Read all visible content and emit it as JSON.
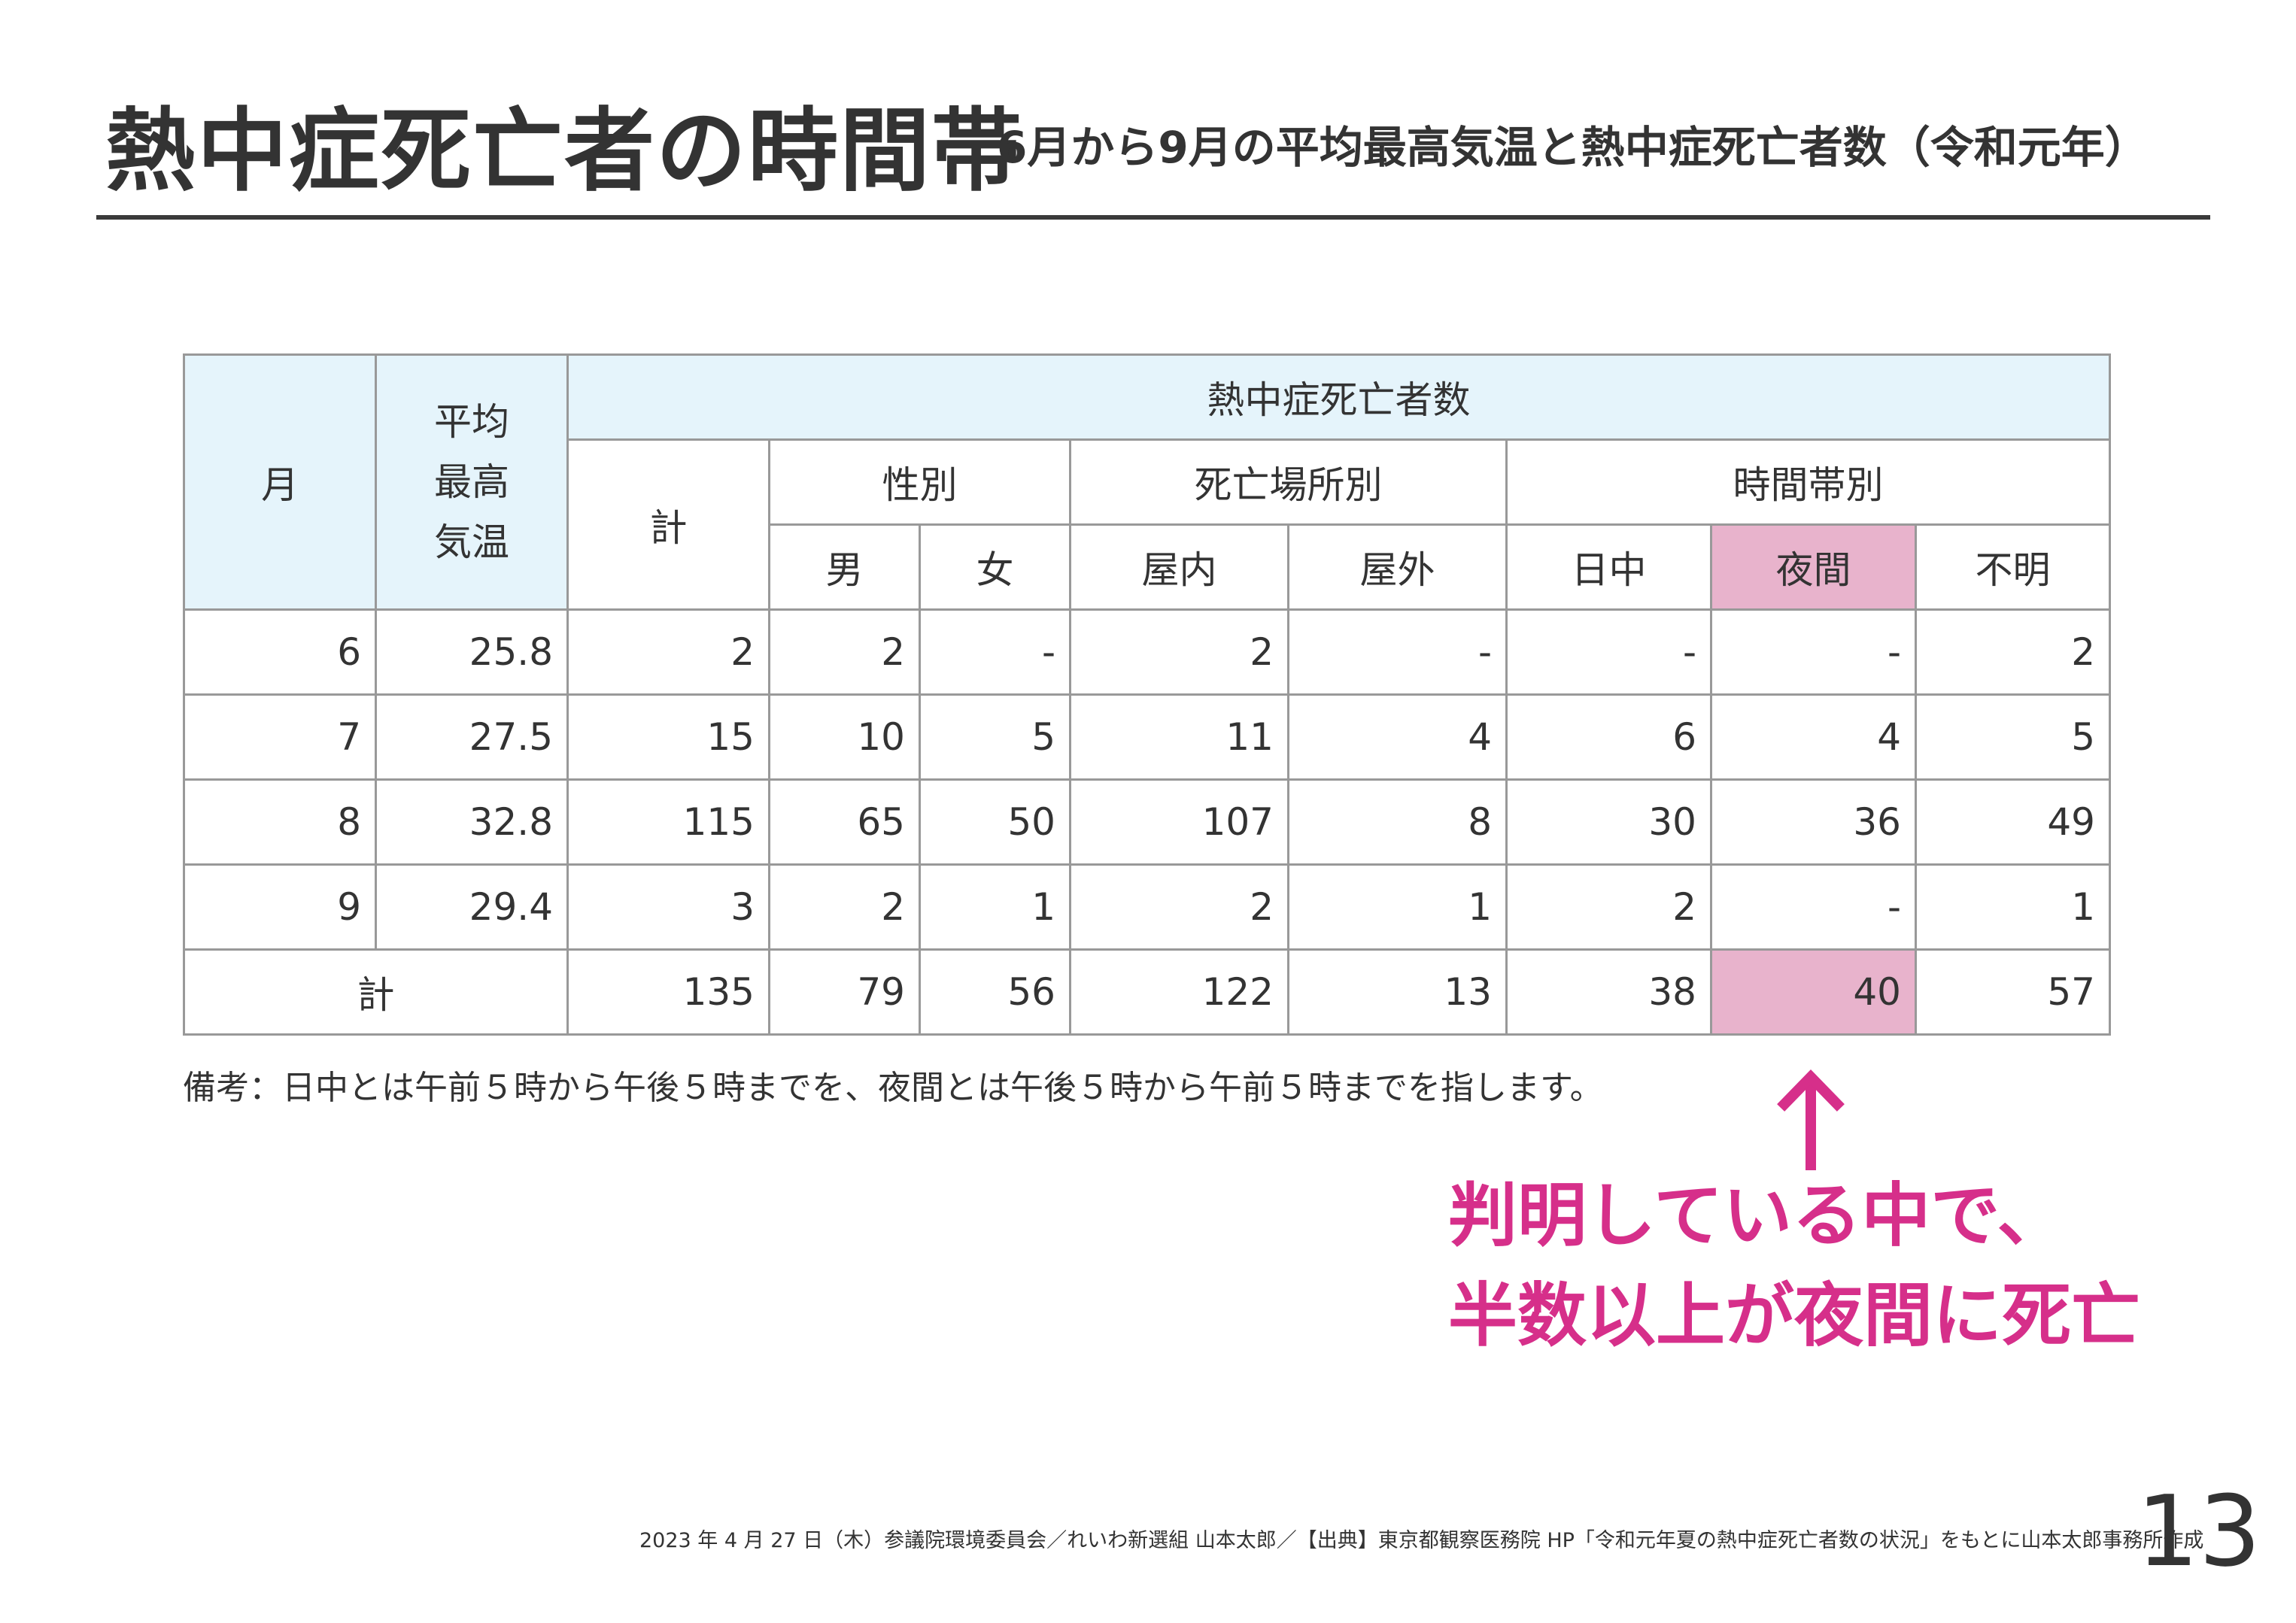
{
  "title": {
    "main": "熱中症死亡者の時間帯",
    "sub": "6月から9月の平均最高気温と熱中症死亡者数（令和元年）"
  },
  "table": {
    "header": {
      "month": "月",
      "temp_lines": [
        "平均",
        "最高",
        "気温"
      ],
      "deaths_group": "熱中症死亡者数",
      "total": "計",
      "by_sex": "性別",
      "by_place": "死亡場所別",
      "by_time": "時間帯別",
      "male": "男",
      "female": "女",
      "indoor": "屋内",
      "outdoor": "屋外",
      "daytime": "日中",
      "night": "夜間",
      "unknown": "不明"
    },
    "rows": [
      {
        "month": "6",
        "temp": "25.8",
        "total": "2",
        "male": "2",
        "female": "-",
        "indoor": "2",
        "outdoor": "-",
        "daytime": "-",
        "night": "-",
        "unknown": "2"
      },
      {
        "month": "7",
        "temp": "27.5",
        "total": "15",
        "male": "10",
        "female": "5",
        "indoor": "11",
        "outdoor": "4",
        "daytime": "6",
        "night": "4",
        "unknown": "5"
      },
      {
        "month": "8",
        "temp": "32.8",
        "total": "115",
        "male": "65",
        "female": "50",
        "indoor": "107",
        "outdoor": "8",
        "daytime": "30",
        "night": "36",
        "unknown": "49"
      },
      {
        "month": "9",
        "temp": "29.4",
        "total": "3",
        "male": "2",
        "female": "1",
        "indoor": "2",
        "outdoor": "1",
        "daytime": "2",
        "night": "-",
        "unknown": "1"
      }
    ],
    "total_row": {
      "label": "計",
      "total": "135",
      "male": "79",
      "female": "56",
      "indoor": "122",
      "outdoor": "13",
      "daytime": "38",
      "night": "40",
      "unknown": "57"
    }
  },
  "note": "備考：日中とは午前５時から午後５時までを、夜間とは午後５時から午前５時までを指します。",
  "callout": {
    "line1": "判明している中で、",
    "line2": "半数以上が夜間に死亡"
  },
  "footer": "2023 年 4 月 27 日（木）参議院環境委員会／れいわ新選組 山本太郎／【出典】東京都観察医務院 HP「令和元年夏の熱中症死亡者数の状況」をもとに山本太郎事務所作成",
  "page_number": "13",
  "colors": {
    "header_blue": "#e5f4fb",
    "highlight_pink": "#e8b3cc",
    "accent_magenta": "#d62f8a",
    "text": "#333333"
  }
}
